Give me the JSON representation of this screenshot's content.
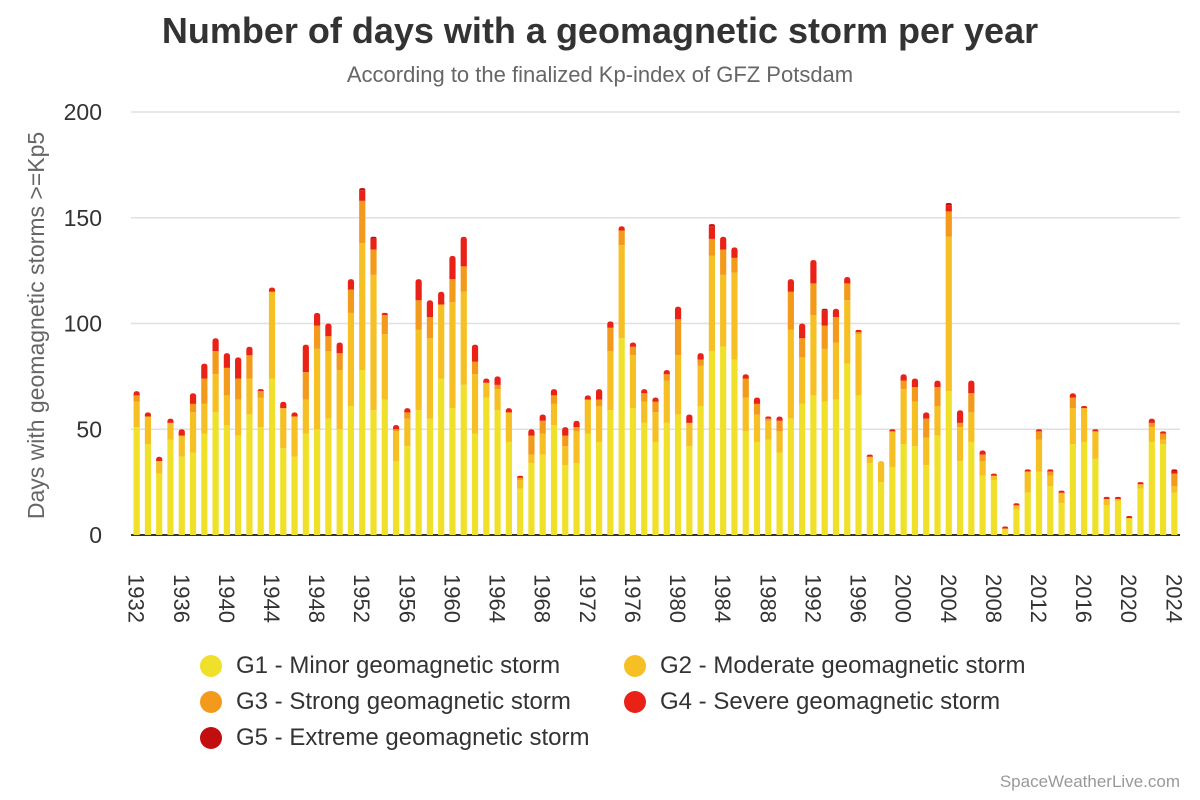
{
  "chart_data": {
    "type": "bar",
    "stacked": true,
    "title": "Number of days with a geomagnetic storm per year",
    "subtitle": "According to the finalized Kp-index of GFZ Potsdam",
    "ylabel": "Days with geomagnetic storms >=Kp5",
    "xlabel": "",
    "ylim": [
      0,
      200
    ],
    "yticks": [
      0,
      50,
      100,
      150,
      200
    ],
    "grid": true,
    "legend_position": "bottom",
    "categories": [
      1932,
      1933,
      1934,
      1935,
      1936,
      1937,
      1938,
      1939,
      1940,
      1941,
      1942,
      1943,
      1944,
      1945,
      1946,
      1947,
      1948,
      1949,
      1950,
      1951,
      1952,
      1953,
      1954,
      1955,
      1956,
      1957,
      1958,
      1959,
      1960,
      1961,
      1962,
      1963,
      1964,
      1965,
      1966,
      1967,
      1968,
      1969,
      1970,
      1971,
      1972,
      1973,
      1974,
      1975,
      1976,
      1977,
      1978,
      1979,
      1980,
      1981,
      1982,
      1983,
      1984,
      1985,
      1986,
      1987,
      1988,
      1989,
      1990,
      1991,
      1992,
      1993,
      1994,
      1995,
      1996,
      1997,
      1998,
      1999,
      2000,
      2001,
      2002,
      2003,
      2004,
      2005,
      2006,
      2007,
      2008,
      2009,
      2010,
      2011,
      2012,
      2013,
      2014,
      2015,
      2016,
      2017,
      2018,
      2019,
      2020,
      2021,
      2022,
      2023,
      2024
    ],
    "x_tick_labels": [
      "1932",
      "1936",
      "1940",
      "1944",
      "1948",
      "1952",
      "1956",
      "1960",
      "1964",
      "1968",
      "1972",
      "1976",
      "1980",
      "1984",
      "1988",
      "1992",
      "1996",
      "2000",
      "2004",
      "2008",
      "2012",
      "2016",
      "2020",
      "2024"
    ],
    "series": [
      {
        "name": "G1 - Minor geomagnetic storm",
        "color": "#f0e02a",
        "values": [
          51,
          43,
          29,
          45,
          37,
          39,
          48,
          58,
          52,
          47,
          57,
          51,
          74,
          41,
          37,
          48,
          50,
          55,
          50,
          61,
          78,
          59,
          64,
          35,
          42,
          59,
          55,
          74,
          60,
          71,
          48,
          65,
          59,
          44,
          22,
          34,
          38,
          52,
          33,
          34,
          48,
          44,
          59,
          93,
          60,
          53,
          44,
          53,
          57,
          42,
          61,
          87,
          89,
          83,
          49,
          44,
          45,
          39,
          55,
          62,
          66,
          63,
          64,
          81,
          66,
          34,
          25,
          32,
          43,
          42,
          33,
          47,
          68,
          35,
          44,
          28,
          26,
          3,
          12,
          20,
          30,
          23,
          15,
          43,
          44,
          36,
          14,
          16,
          8,
          22,
          44,
          43,
          20
        ]
      },
      {
        "name": "G2 - Moderate geomagnetic storm",
        "color": "#f6c025",
        "values": [
          12,
          13,
          6,
          8,
          10,
          19,
          14,
          18,
          14,
          17,
          17,
          14,
          41,
          19,
          19,
          16,
          38,
          32,
          28,
          44,
          60,
          64,
          31,
          14,
          13,
          38,
          38,
          35,
          50,
          44,
          28,
          7,
          10,
          14,
          4,
          4,
          10,
          10,
          9,
          15,
          16,
          17,
          28,
          44,
          25,
          10,
          14,
          20,
          28,
          11,
          19,
          45,
          34,
          41,
          16,
          13,
          9,
          10,
          42,
          22,
          38,
          25,
          27,
          30,
          29,
          3,
          10,
          17,
          26,
          21,
          13,
          14,
          73,
          16,
          14,
          7,
          2,
          0,
          2,
          10,
          15,
          5,
          5,
          17,
          16,
          13,
          3,
          1,
          0,
          2,
          7,
          2,
          3
        ]
      },
      {
        "name": "G3 - Strong geomagnetic storm",
        "color": "#f39a1c",
        "values": [
          3,
          0,
          0,
          0,
          0,
          4,
          12,
          11,
          13,
          10,
          11,
          3,
          0,
          0,
          0,
          13,
          11,
          7,
          8,
          11,
          20,
          12,
          9,
          1,
          3,
          14,
          10,
          0,
          11,
          12,
          6,
          0,
          2,
          0,
          1,
          9,
          6,
          4,
          5,
          2,
          0,
          3,
          11,
          7,
          4,
          4,
          5,
          3,
          17,
          0,
          3,
          8,
          12,
          7,
          9,
          5,
          1,
          5,
          18,
          9,
          15,
          11,
          12,
          8,
          1,
          0,
          0,
          0,
          4,
          7,
          9,
          9,
          12,
          2,
          9,
          3,
          0,
          0,
          0,
          0,
          4,
          2,
          0,
          5,
          0,
          0,
          0,
          0,
          0,
          0,
          2,
          3,
          6
        ]
      },
      {
        "name": "G4 - Severe geomagnetic storm",
        "color": "#ea2117",
        "values": [
          2,
          2,
          2,
          2,
          3,
          5,
          7,
          6,
          7,
          10,
          4,
          1,
          2,
          3,
          2,
          13,
          6,
          6,
          5,
          5,
          5,
          5,
          1,
          2,
          2,
          10,
          8,
          6,
          11,
          14,
          8,
          2,
          4,
          2,
          1,
          3,
          3,
          3,
          4,
          3,
          2,
          5,
          3,
          2,
          2,
          2,
          2,
          2,
          6,
          4,
          3,
          6,
          6,
          5,
          2,
          3,
          1,
          2,
          6,
          7,
          11,
          7,
          4,
          3,
          1,
          1,
          0,
          1,
          3,
          4,
          3,
          3,
          3,
          6,
          6,
          2,
          1,
          1,
          1,
          1,
          1,
          1,
          1,
          2,
          1,
          1,
          1,
          1,
          1,
          1,
          2,
          1,
          1
        ]
      },
      {
        "name": "G5 - Extreme geomagnetic storm",
        "color": "#c20e0e",
        "values": [
          0,
          0,
          0,
          0,
          0,
          0,
          0,
          0,
          0,
          0,
          0,
          0,
          0,
          0,
          0,
          0,
          0,
          0,
          0,
          0,
          1,
          1,
          0,
          0,
          0,
          0,
          0,
          0,
          0,
          0,
          0,
          0,
          0,
          0,
          0,
          0,
          0,
          0,
          0,
          0,
          0,
          0,
          0,
          0,
          0,
          0,
          0,
          0,
          0,
          0,
          0,
          1,
          0,
          0,
          0,
          0,
          0,
          0,
          0,
          0,
          0,
          1,
          0,
          0,
          0,
          0,
          0,
          0,
          0,
          0,
          0,
          0,
          1,
          0,
          0,
          0,
          0,
          0,
          0,
          0,
          0,
          0,
          0,
          0,
          0,
          0,
          0,
          0,
          0,
          0,
          0,
          0,
          1
        ]
      }
    ]
  },
  "legend": [
    {
      "label": "G1 - Minor geomagnetic storm",
      "color": "#f0e02a"
    },
    {
      "label": "G2 - Moderate geomagnetic storm",
      "color": "#f6c025"
    },
    {
      "label": "G3 - Strong geomagnetic storm",
      "color": "#f39a1c"
    },
    {
      "label": "G4 - Severe geomagnetic storm",
      "color": "#ea2117"
    },
    {
      "label": "G5 - Extreme geomagnetic storm",
      "color": "#c20e0e"
    }
  ],
  "credits": "SpaceWeatherLive.com"
}
